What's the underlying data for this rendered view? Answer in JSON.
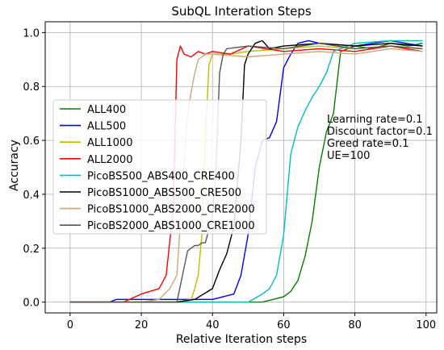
{
  "chart_data": {
    "type": "line",
    "title": "SubQL Interation Steps",
    "xlabel": "Relative Iteration steps",
    "ylabel": "Accuracy",
    "xlim": [
      -7,
      103
    ],
    "ylim": [
      -0.04,
      1.04
    ],
    "xticks": [
      "0",
      "20",
      "40",
      "60",
      "80",
      "100"
    ],
    "xtick_values": [
      0,
      20,
      40,
      60,
      80,
      100
    ],
    "yticks": [
      "0.0",
      "0.2",
      "0.4",
      "0.6",
      "0.8",
      "1.0"
    ],
    "ytick_values": [
      0.0,
      0.2,
      0.4,
      0.6,
      0.8,
      1.0
    ],
    "grid": true,
    "legend_placement": "center-left",
    "annotations": [
      "Learning rate=0.1",
      "Discount factor=0.1",
      "Greed rate=0.1",
      "UE=100"
    ],
    "series": [
      {
        "name": "ALL400",
        "color": "#008000",
        "x": [
          20,
          30,
          40,
          50,
          54,
          57,
          60,
          62,
          64,
          66,
          68,
          70,
          72,
          74,
          76,
          80,
          85,
          90,
          95,
          99
        ],
        "y": [
          0.0,
          0.0,
          0.0,
          0.0,
          0.0,
          0.01,
          0.02,
          0.04,
          0.08,
          0.17,
          0.3,
          0.5,
          0.63,
          0.7,
          0.93,
          0.95,
          0.94,
          0.96,
          0.95,
          0.96
        ]
      },
      {
        "name": "ALL500",
        "color": "#0000ff",
        "x": [
          0,
          11,
          13,
          20,
          30,
          40,
          46,
          48,
          50,
          52,
          54,
          56,
          58,
          60,
          62,
          64,
          67,
          70,
          80,
          90,
          99
        ],
        "y": [
          0.0,
          0.0,
          0.01,
          0.01,
          0.01,
          0.01,
          0.03,
          0.1,
          0.25,
          0.5,
          0.6,
          0.61,
          0.67,
          0.87,
          0.92,
          0.96,
          0.97,
          0.96,
          0.95,
          0.97,
          0.95
        ]
      },
      {
        "name": "ALL1000",
        "color": "#bfbf00",
        "x": [
          0,
          20,
          30,
          34,
          35,
          36,
          37,
          38,
          39,
          40,
          45,
          50,
          60,
          70,
          80,
          90,
          99
        ],
        "y": [
          0.0,
          0.0,
          0.0,
          0.01,
          0.05,
          0.1,
          0.25,
          0.6,
          0.88,
          0.92,
          0.92,
          0.93,
          0.94,
          0.95,
          0.94,
          0.95,
          0.94
        ]
      },
      {
        "name": "ALL2000",
        "color": "#ff0000",
        "x": [
          0,
          15,
          20,
          25,
          27,
          29,
          30,
          31,
          32,
          34,
          36,
          38,
          40,
          45,
          50,
          60,
          70,
          80,
          90,
          99
        ],
        "y": [
          0.0,
          0.0,
          0.03,
          0.05,
          0.1,
          0.35,
          0.9,
          0.95,
          0.92,
          0.91,
          0.93,
          0.92,
          0.93,
          0.92,
          0.95,
          0.93,
          0.94,
          0.93,
          0.95,
          0.93
        ]
      },
      {
        "name": "PicoBS500_ABS400_CRE400",
        "color": "#00bfbf",
        "x": [
          20,
          30,
          40,
          50,
          54,
          56,
          58,
          60,
          62,
          64,
          66,
          68,
          70,
          72,
          74,
          80,
          90,
          99
        ],
        "y": [
          0.0,
          0.0,
          0.0,
          0.0,
          0.03,
          0.05,
          0.1,
          0.25,
          0.55,
          0.65,
          0.71,
          0.76,
          0.8,
          0.85,
          0.93,
          0.96,
          0.97,
          0.97
        ]
      },
      {
        "name": "PicoBS1000_ABS500_CRE500",
        "color": "#000000",
        "x": [
          0,
          20,
          30,
          35,
          40,
          42,
          44,
          46,
          48,
          49,
          50,
          52,
          54,
          56,
          60,
          70,
          80,
          90,
          99
        ],
        "y": [
          0.0,
          0.0,
          0.0,
          0.01,
          0.05,
          0.12,
          0.18,
          0.28,
          0.6,
          0.88,
          0.92,
          0.96,
          0.97,
          0.94,
          0.95,
          0.96,
          0.95,
          0.96,
          0.95
        ]
      },
      {
        "name": "PicoBS1000_ABS2000_CRE2000",
        "color": "#d4a574",
        "x": [
          0,
          20,
          25,
          28,
          30,
          32,
          33,
          34,
          35,
          36,
          37,
          38,
          40,
          50,
          60,
          70,
          80,
          90,
          99
        ],
        "y": [
          0.0,
          0.0,
          0.01,
          0.05,
          0.1,
          0.5,
          0.7,
          0.78,
          0.85,
          0.9,
          0.91,
          0.92,
          0.92,
          0.91,
          0.92,
          0.93,
          0.92,
          0.94,
          0.93
        ]
      },
      {
        "name": "PicoBS2000_ABS1000_CRE1000",
        "color": "#555555",
        "x": [
          0,
          20,
          30,
          33,
          35,
          36,
          37,
          38,
          40,
          41,
          42,
          43,
          44,
          50,
          60,
          70,
          80,
          90,
          99
        ],
        "y": [
          0.0,
          0.0,
          0.0,
          0.19,
          0.21,
          0.21,
          0.22,
          0.22,
          0.32,
          0.5,
          0.85,
          0.92,
          0.94,
          0.95,
          0.94,
          0.96,
          0.94,
          0.95,
          0.94
        ]
      }
    ]
  }
}
